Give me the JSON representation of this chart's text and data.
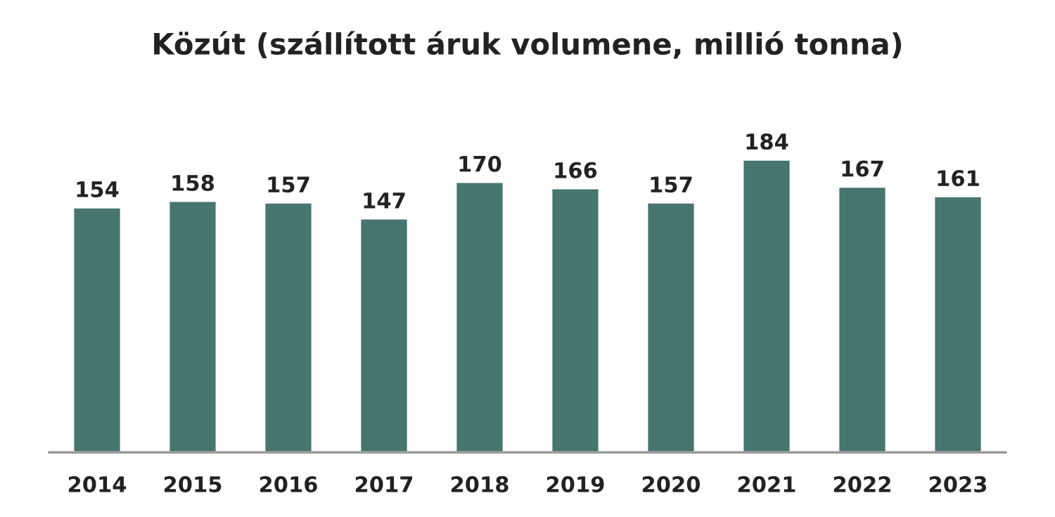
{
  "chart_data": {
    "type": "bar",
    "title": "Közút (szállított áruk volumene, millió tonna)",
    "categories": [
      "2014",
      "2015",
      "2016",
      "2017",
      "2018",
      "2019",
      "2020",
      "2021",
      "2022",
      "2023"
    ],
    "values": [
      154,
      158,
      157,
      147,
      170,
      166,
      157,
      184,
      167,
      161
    ],
    "color": "#477571",
    "data_labels": true,
    "grid": false,
    "legend": false
  }
}
